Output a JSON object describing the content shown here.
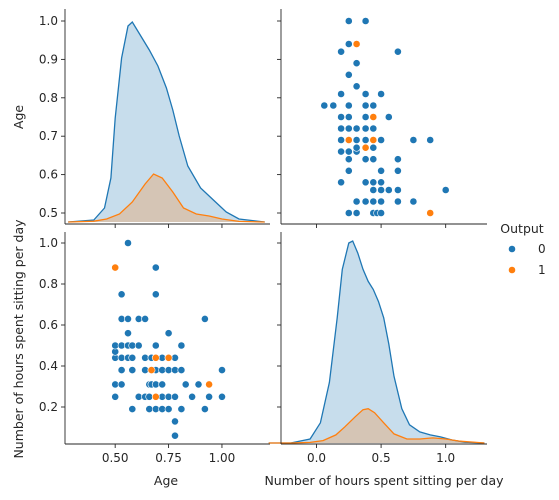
{
  "chart_data": {
    "type": "pairplot",
    "variables": [
      "Age",
      "Number of hours spent sitting per day"
    ],
    "hue": "Output",
    "legend": {
      "title": "Output",
      "placement": "right",
      "entries": [
        {
          "label": "0",
          "color": "#1f77b4"
        },
        {
          "label": "1",
          "color": "#ff7f0e"
        }
      ]
    },
    "axes": {
      "age_ticks": [
        "0.5",
        "0.6",
        "0.7",
        "0.8",
        "0.9",
        "1.0"
      ],
      "age_xticks": [
        "0.50",
        "0.75",
        "1.00"
      ],
      "hours_ticks": [
        "0.2",
        "0.4",
        "0.6",
        "0.8",
        "1.0"
      ],
      "hours_xticks": [
        "0.0",
        "0.5",
        "1.0"
      ],
      "age_range": [
        0.47,
        1.02
      ],
      "hours_range": [
        0.01,
        1.04
      ],
      "age_kde_range": [
        0.28,
        1.2
      ],
      "hours_kde_range": [
        -0.37,
        1.3
      ]
    },
    "series": [
      {
        "name": "0",
        "color": "#1f77b4",
        "points": [
          [
            0.5,
            0.25
          ],
          [
            0.5,
            0.31
          ],
          [
            0.5,
            0.44
          ],
          [
            0.5,
            0.47
          ],
          [
            0.5,
            0.5
          ],
          [
            0.53,
            0.31
          ],
          [
            0.53,
            0.38
          ],
          [
            0.53,
            0.44
          ],
          [
            0.53,
            0.5
          ],
          [
            0.53,
            0.63
          ],
          [
            0.53,
            0.75
          ],
          [
            0.56,
            0.44
          ],
          [
            0.56,
            0.5
          ],
          [
            0.56,
            0.56
          ],
          [
            0.56,
            0.63
          ],
          [
            0.56,
            1.0
          ],
          [
            0.58,
            0.19
          ],
          [
            0.58,
            0.38
          ],
          [
            0.58,
            0.44
          ],
          [
            0.58,
            0.5
          ],
          [
            0.61,
            0.25
          ],
          [
            0.61,
            0.5
          ],
          [
            0.61,
            0.63
          ],
          [
            0.64,
            0.25
          ],
          [
            0.64,
            0.38
          ],
          [
            0.64,
            0.44
          ],
          [
            0.64,
            0.63
          ],
          [
            0.66,
            0.19
          ],
          [
            0.66,
            0.25
          ],
          [
            0.66,
            0.31
          ],
          [
            0.67,
            0.31
          ],
          [
            0.67,
            0.38
          ],
          [
            0.67,
            0.44
          ],
          [
            0.69,
            0.19
          ],
          [
            0.69,
            0.25
          ],
          [
            0.69,
            0.31
          ],
          [
            0.69,
            0.38
          ],
          [
            0.69,
            0.5
          ],
          [
            0.69,
            0.75
          ],
          [
            0.69,
            0.88
          ],
          [
            0.72,
            0.19
          ],
          [
            0.72,
            0.25
          ],
          [
            0.72,
            0.31
          ],
          [
            0.72,
            0.38
          ],
          [
            0.72,
            0.44
          ],
          [
            0.75,
            0.19
          ],
          [
            0.75,
            0.25
          ],
          [
            0.75,
            0.38
          ],
          [
            0.75,
            0.44
          ],
          [
            0.75,
            0.56
          ],
          [
            0.78,
            0.13
          ],
          [
            0.78,
            0.06
          ],
          [
            0.78,
            0.25
          ],
          [
            0.78,
            0.38
          ],
          [
            0.78,
            0.44
          ],
          [
            0.81,
            0.19
          ],
          [
            0.81,
            0.38
          ],
          [
            0.81,
            0.5
          ],
          [
            0.83,
            0.31
          ],
          [
            0.86,
            0.25
          ],
          [
            0.89,
            0.31
          ],
          [
            0.92,
            0.19
          ],
          [
            0.92,
            0.63
          ],
          [
            0.94,
            0.25
          ],
          [
            1.0,
            0.25
          ],
          [
            1.0,
            0.38
          ]
        ],
        "kde": [
          [
            0.28,
            0.0
          ],
          [
            0.4,
            0.01
          ],
          [
            0.45,
            0.07
          ],
          [
            0.48,
            0.22
          ],
          [
            0.5,
            0.52
          ],
          [
            0.53,
            0.82
          ],
          [
            0.56,
            0.98
          ],
          [
            0.58,
            1.0
          ],
          [
            0.62,
            0.93
          ],
          [
            0.66,
            0.86
          ],
          [
            0.7,
            0.78
          ],
          [
            0.74,
            0.67
          ],
          [
            0.77,
            0.56
          ],
          [
            0.8,
            0.43
          ],
          [
            0.84,
            0.28
          ],
          [
            0.9,
            0.17
          ],
          [
            0.96,
            0.11
          ],
          [
            1.02,
            0.05
          ],
          [
            1.08,
            0.015
          ],
          [
            1.2,
            0.0
          ]
        ]
      },
      {
        "name": "1",
        "color": "#ff7f0e",
        "points": [
          [
            0.5,
            0.88
          ],
          [
            0.67,
            0.38
          ],
          [
            0.69,
            0.44
          ],
          [
            0.69,
            0.25
          ],
          [
            0.75,
            0.44
          ],
          [
            0.94,
            0.31
          ]
        ],
        "kde": [
          [
            0.28,
            0.0
          ],
          [
            0.4,
            0.004
          ],
          [
            0.46,
            0.015
          ],
          [
            0.52,
            0.04
          ],
          [
            0.58,
            0.1
          ],
          [
            0.64,
            0.19
          ],
          [
            0.68,
            0.24
          ],
          [
            0.72,
            0.22
          ],
          [
            0.77,
            0.15
          ],
          [
            0.82,
            0.07
          ],
          [
            0.88,
            0.04
          ],
          [
            0.94,
            0.03
          ],
          [
            1.0,
            0.015
          ],
          [
            1.08,
            0.003
          ],
          [
            1.2,
            0.0
          ]
        ]
      }
    ],
    "hours_kde": [
      {
        "name": "0",
        "color": "#1f77b4",
        "values": [
          [
            -0.37,
            0.0
          ],
          [
            -0.2,
            0.0
          ],
          [
            -0.05,
            0.02
          ],
          [
            0.03,
            0.1
          ],
          [
            0.1,
            0.3
          ],
          [
            0.16,
            0.62
          ],
          [
            0.2,
            0.86
          ],
          [
            0.25,
            0.99
          ],
          [
            0.28,
            1.0
          ],
          [
            0.32,
            0.94
          ],
          [
            0.36,
            0.86
          ],
          [
            0.4,
            0.8
          ],
          [
            0.44,
            0.76
          ],
          [
            0.48,
            0.7
          ],
          [
            0.52,
            0.62
          ],
          [
            0.56,
            0.49
          ],
          [
            0.6,
            0.33
          ],
          [
            0.66,
            0.17
          ],
          [
            0.72,
            0.09
          ],
          [
            0.8,
            0.055
          ],
          [
            0.88,
            0.04
          ],
          [
            0.96,
            0.03
          ],
          [
            1.05,
            0.015
          ],
          [
            1.15,
            0.004
          ],
          [
            1.3,
            0.0
          ]
        ]
      },
      {
        "name": "1",
        "color": "#ff7f0e",
        "values": [
          [
            -0.37,
            0.0
          ],
          [
            -0.2,
            0.0
          ],
          [
            -0.05,
            0.003
          ],
          [
            0.05,
            0.012
          ],
          [
            0.15,
            0.04
          ],
          [
            0.22,
            0.08
          ],
          [
            0.3,
            0.13
          ],
          [
            0.36,
            0.165
          ],
          [
            0.4,
            0.17
          ],
          [
            0.45,
            0.15
          ],
          [
            0.52,
            0.1
          ],
          [
            0.6,
            0.045
          ],
          [
            0.7,
            0.02
          ],
          [
            0.8,
            0.02
          ],
          [
            0.9,
            0.025
          ],
          [
            1.0,
            0.02
          ],
          [
            1.1,
            0.01
          ],
          [
            1.3,
            0.0
          ]
        ]
      }
    ],
    "xlabels": [
      "Age",
      "Number of hours spent sitting per day"
    ],
    "ylabels": [
      "Age",
      "Number of hours spent sitting per day"
    ]
  }
}
